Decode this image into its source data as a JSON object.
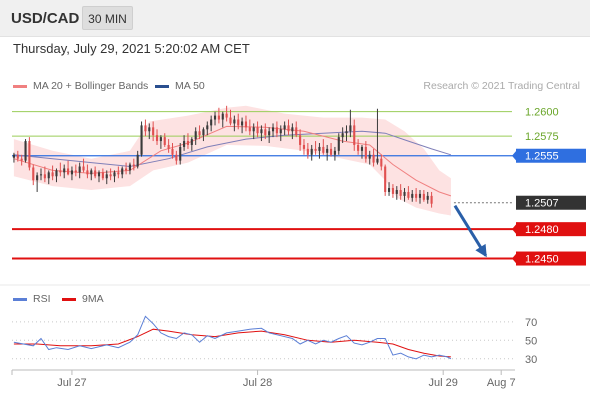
{
  "header": {
    "symbol": "USD/CAD",
    "timeframe": "30 MIN"
  },
  "timestamp": "Thursday, July 29, 2021 5:20:02 AM CET",
  "legend": {
    "ma20_label": "MA 20 + Bollinger Bands",
    "ma50_label": "MA 50",
    "credit": "Research © 2021 Trading Central",
    "rsi_label": "RSI",
    "rsi_ma_label": "9MA"
  },
  "colors": {
    "up_candle": "#3a3a3a",
    "down_candle": "#e05050",
    "bollinger_fill": "#fde2e2",
    "ma20": "#f08080",
    "ma50": "#7f7fb8",
    "resistance": "#9acd58",
    "pivot": "#2f6fe0",
    "support": "#e01010",
    "current": "#333333",
    "rsi": "#5b7fd6",
    "rsi_ma": "#e01010",
    "arrow": "#2a5fa8"
  },
  "chart_data": {
    "type": "candlestick",
    "price_range": [
      1.2425,
      1.2615
    ],
    "levels": [
      {
        "name": "resistance-2",
        "value": 1.26,
        "label": "1.2600",
        "style": "resistance"
      },
      {
        "name": "resistance-1",
        "value": 1.2575,
        "label": "1.2575",
        "style": "resistance"
      },
      {
        "name": "pivot",
        "value": 1.2555,
        "label": "1.2555",
        "style": "pivot"
      },
      {
        "name": "current",
        "value": 1.2507,
        "label": "1.2507",
        "style": "current"
      },
      {
        "name": "support-1",
        "value": 1.248,
        "label": "1.2480",
        "style": "support"
      },
      {
        "name": "support-2",
        "value": 1.245,
        "label": "1.2450",
        "style": "support"
      }
    ],
    "x_ticks": [
      "Jul 27",
      "Jul 28",
      "Jul 29",
      "Aug 7"
    ],
    "x_tick_index": [
      15,
      63,
      111,
      126
    ],
    "slot_count": 128,
    "candles": [
      [
        1.2553,
        1.2558,
        1.2548,
        1.2556
      ],
      [
        1.2556,
        1.256,
        1.2549,
        1.2552
      ],
      [
        1.2552,
        1.2556,
        1.2545,
        1.255
      ],
      [
        1.255,
        1.2572,
        1.2548,
        1.257
      ],
      [
        1.257,
        1.2574,
        1.254,
        1.2543
      ],
      [
        1.2543,
        1.2546,
        1.2525,
        1.253
      ],
      [
        1.253,
        1.2538,
        1.2518,
        1.2535
      ],
      [
        1.2535,
        1.2542,
        1.253,
        1.2536
      ],
      [
        1.2536,
        1.2544,
        1.2528,
        1.2532
      ],
      [
        1.2532,
        1.254,
        1.2526,
        1.2538
      ],
      [
        1.2538,
        1.2545,
        1.253,
        1.2534
      ],
      [
        1.2534,
        1.2542,
        1.2528,
        1.254
      ],
      [
        1.254,
        1.2548,
        1.2534,
        1.2538
      ],
      [
        1.2538,
        1.2546,
        1.2532,
        1.2542
      ],
      [
        1.2542,
        1.255,
        1.2535,
        1.2536
      ],
      [
        1.2536,
        1.2544,
        1.253,
        1.254
      ],
      [
        1.254,
        1.2546,
        1.2534,
        1.2538
      ],
      [
        1.2538,
        1.2548,
        1.2532,
        1.2544
      ],
      [
        1.2544,
        1.2552,
        1.2538,
        1.254
      ],
      [
        1.254,
        1.2546,
        1.2532,
        1.2536
      ],
      [
        1.2536,
        1.2542,
        1.253,
        1.254
      ],
      [
        1.254,
        1.2544,
        1.2532,
        1.2534
      ],
      [
        1.2534,
        1.254,
        1.2528,
        1.2538
      ],
      [
        1.2538,
        1.2542,
        1.253,
        1.2532
      ],
      [
        1.2532,
        1.254,
        1.2526,
        1.2536
      ],
      [
        1.2536,
        1.2542,
        1.253,
        1.2534
      ],
      [
        1.2534,
        1.254,
        1.2528,
        1.2538
      ],
      [
        1.2538,
        1.2544,
        1.2532,
        1.2536
      ],
      [
        1.2536,
        1.2544,
        1.2532,
        1.2542
      ],
      [
        1.2542,
        1.2548,
        1.2536,
        1.254
      ],
      [
        1.254,
        1.2548,
        1.2536,
        1.2546
      ],
      [
        1.2546,
        1.2552,
        1.254,
        1.2544
      ],
      [
        1.2544,
        1.256,
        1.2542,
        1.2556
      ],
      [
        1.2556,
        1.259,
        1.2554,
        1.2586
      ],
      [
        1.2586,
        1.2592,
        1.2575,
        1.258
      ],
      [
        1.258,
        1.2588,
        1.2572,
        1.2584
      ],
      [
        1.2584,
        1.259,
        1.257,
        1.2576
      ],
      [
        1.2576,
        1.2582,
        1.2566,
        1.257
      ],
      [
        1.257,
        1.2576,
        1.2562,
        1.2574
      ],
      [
        1.2574,
        1.2578,
        1.2564,
        1.2566
      ],
      [
        1.2566,
        1.2572,
        1.2558,
        1.2562
      ],
      [
        1.2562,
        1.2568,
        1.2552,
        1.2556
      ],
      [
        1.2556,
        1.256,
        1.2546,
        1.255
      ],
      [
        1.255,
        1.2568,
        1.2546,
        1.2564
      ],
      [
        1.2564,
        1.2576,
        1.256,
        1.257
      ],
      [
        1.257,
        1.2578,
        1.2562,
        1.2566
      ],
      [
        1.2566,
        1.2574,
        1.256,
        1.2572
      ],
      [
        1.2572,
        1.2584,
        1.2566,
        1.258
      ],
      [
        1.258,
        1.2586,
        1.2572,
        1.2576
      ],
      [
        1.2576,
        1.2584,
        1.257,
        1.2582
      ],
      [
        1.2582,
        1.259,
        1.2576,
        1.2586
      ],
      [
        1.2586,
        1.2596,
        1.258,
        1.2592
      ],
      [
        1.2592,
        1.26,
        1.2586,
        1.2596
      ],
      [
        1.2596,
        1.2604,
        1.2588,
        1.2592
      ],
      [
        1.2592,
        1.26,
        1.2584,
        1.2598
      ],
      [
        1.2598,
        1.2606,
        1.259,
        1.2594
      ],
      [
        1.2594,
        1.2602,
        1.2586,
        1.2588
      ],
      [
        1.2588,
        1.2596,
        1.258,
        1.2592
      ],
      [
        1.2592,
        1.2598,
        1.2582,
        1.2586
      ],
      [
        1.2586,
        1.2594,
        1.2578,
        1.259
      ],
      [
        1.259,
        1.2596,
        1.258,
        1.2584
      ],
      [
        1.2584,
        1.2592,
        1.2576,
        1.258
      ],
      [
        1.258,
        1.2588,
        1.2572,
        1.2584
      ],
      [
        1.2584,
        1.259,
        1.2574,
        1.2578
      ],
      [
        1.2578,
        1.2586,
        1.257,
        1.2582
      ],
      [
        1.2582,
        1.2588,
        1.2572,
        1.2576
      ],
      [
        1.2576,
        1.2584,
        1.2568,
        1.258
      ],
      [
        1.258,
        1.2588,
        1.2574,
        1.2584
      ],
      [
        1.2584,
        1.259,
        1.2574,
        1.2578
      ],
      [
        1.2578,
        1.2586,
        1.257,
        1.2582
      ],
      [
        1.2582,
        1.259,
        1.2576,
        1.2586
      ],
      [
        1.2586,
        1.2592,
        1.2576,
        1.258
      ],
      [
        1.258,
        1.2588,
        1.2572,
        1.2584
      ],
      [
        1.2584,
        1.259,
        1.2574,
        1.2576
      ],
      [
        1.2576,
        1.2582,
        1.256,
        1.2566
      ],
      [
        1.2566,
        1.2572,
        1.2556,
        1.2562
      ],
      [
        1.2562,
        1.2568,
        1.2552,
        1.2556
      ],
      [
        1.2556,
        1.2566,
        1.255,
        1.2562
      ],
      [
        1.2562,
        1.257,
        1.2556,
        1.256
      ],
      [
        1.256,
        1.2568,
        1.2552,
        1.2564
      ],
      [
        1.2564,
        1.2572,
        1.2556,
        1.2558
      ],
      [
        1.2558,
        1.2566,
        1.255,
        1.2562
      ],
      [
        1.2562,
        1.2568,
        1.2554,
        1.2556
      ],
      [
        1.2556,
        1.2564,
        1.255,
        1.256
      ],
      [
        1.256,
        1.2578,
        1.2556,
        1.2574
      ],
      [
        1.2574,
        1.2584,
        1.2568,
        1.2578
      ],
      [
        1.2578,
        1.2586,
        1.257,
        1.258
      ],
      [
        1.258,
        1.2602,
        1.2574,
        1.2586
      ],
      [
        1.2586,
        1.2592,
        1.256,
        1.2566
      ],
      [
        1.2566,
        1.2572,
        1.2556,
        1.256
      ],
      [
        1.256,
        1.2566,
        1.2552,
        1.2564
      ],
      [
        1.2564,
        1.257,
        1.2548,
        1.2552
      ],
      [
        1.2552,
        1.256,
        1.2546,
        1.2556
      ],
      [
        1.2556,
        1.2562,
        1.2544,
        1.2548
      ],
      [
        1.2548,
        1.2603,
        1.2546,
        1.2552
      ],
      [
        1.2552,
        1.2556,
        1.254,
        1.2544
      ],
      [
        1.2544,
        1.2546,
        1.2514,
        1.2518
      ],
      [
        1.2518,
        1.2528,
        1.2514,
        1.2522
      ],
      [
        1.2522,
        1.2526,
        1.2512,
        1.2516
      ],
      [
        1.2516,
        1.2524,
        1.251,
        1.252
      ],
      [
        1.252,
        1.2526,
        1.251,
        1.2514
      ],
      [
        1.2514,
        1.2522,
        1.2508,
        1.2518
      ],
      [
        1.2518,
        1.2524,
        1.251,
        1.2512
      ],
      [
        1.2512,
        1.252,
        1.2508,
        1.2516
      ],
      [
        1.2516,
        1.2522,
        1.2508,
        1.2512
      ],
      [
        1.2512,
        1.252,
        1.2506,
        1.2516
      ],
      [
        1.2516,
        1.252,
        1.2508,
        1.251
      ],
      [
        1.251,
        1.2518,
        1.2506,
        1.2514
      ],
      [
        1.2514,
        1.2518,
        1.2502,
        1.2506
      ]
    ],
    "ma20": [
      [
        0,
        1.2552
      ],
      [
        10,
        1.254
      ],
      [
        20,
        1.2537
      ],
      [
        30,
        1.254
      ],
      [
        38,
        1.256
      ],
      [
        45,
        1.2568
      ],
      [
        55,
        1.2585
      ],
      [
        65,
        1.2584
      ],
      [
        75,
        1.258
      ],
      [
        85,
        1.257
      ],
      [
        92,
        1.2566
      ],
      [
        98,
        1.2546
      ],
      [
        104,
        1.253
      ],
      [
        110,
        1.2518
      ],
      [
        113,
        1.2514
      ]
    ],
    "bollinger_upper": [
      [
        0,
        1.2572
      ],
      [
        10,
        1.256
      ],
      [
        20,
        1.2552
      ],
      [
        30,
        1.256
      ],
      [
        35,
        1.259
      ],
      [
        45,
        1.2596
      ],
      [
        55,
        1.2604
      ],
      [
        60,
        1.2606
      ],
      [
        70,
        1.2598
      ],
      [
        80,
        1.2594
      ],
      [
        90,
        1.2594
      ],
      [
        96,
        1.2592
      ],
      [
        101,
        1.258
      ],
      [
        106,
        1.2562
      ],
      [
        110,
        1.254
      ],
      [
        113,
        1.2532
      ]
    ],
    "bollinger_lower": [
      [
        0,
        1.2534
      ],
      [
        10,
        1.2524
      ],
      [
        20,
        1.252
      ],
      [
        30,
        1.2524
      ],
      [
        36,
        1.254
      ],
      [
        45,
        1.2548
      ],
      [
        55,
        1.2566
      ],
      [
        65,
        1.2565
      ],
      [
        75,
        1.256
      ],
      [
        85,
        1.2552
      ],
      [
        92,
        1.2546
      ],
      [
        96,
        1.253
      ],
      [
        99,
        1.2512
      ],
      [
        104,
        1.2502
      ],
      [
        110,
        1.2496
      ],
      [
        113,
        1.2494
      ]
    ],
    "ma50": [
      [
        0,
        1.2556
      ],
      [
        10,
        1.2552
      ],
      [
        20,
        1.2548
      ],
      [
        30,
        1.2544
      ],
      [
        40,
        1.2552
      ],
      [
        50,
        1.2564
      ],
      [
        60,
        1.2572
      ],
      [
        70,
        1.2576
      ],
      [
        80,
        1.2578
      ],
      [
        90,
        1.258
      ],
      [
        96,
        1.2578
      ],
      [
        102,
        1.257
      ],
      [
        108,
        1.2562
      ],
      [
        113,
        1.2556
      ]
    ],
    "projection": {
      "from": [
        113,
        1.2504
      ],
      "to": [
        122,
        1.2453
      ]
    },
    "rsi": {
      "yticks": [
        70,
        50,
        30
      ],
      "range": [
        20,
        85
      ],
      "rsi_values": [
        [
          0,
          48
        ],
        [
          5,
          44
        ],
        [
          7,
          52
        ],
        [
          9,
          40
        ],
        [
          11,
          42
        ],
        [
          14,
          40
        ],
        [
          17,
          44
        ],
        [
          20,
          41
        ],
        [
          24,
          45
        ],
        [
          27,
          42
        ],
        [
          30,
          48
        ],
        [
          32,
          56
        ],
        [
          34,
          76
        ],
        [
          36,
          68
        ],
        [
          38,
          58
        ],
        [
          40,
          54
        ],
        [
          42,
          52
        ],
        [
          44,
          58
        ],
        [
          46,
          56
        ],
        [
          48,
          48
        ],
        [
          50,
          55
        ],
        [
          52,
          52
        ],
        [
          55,
          58
        ],
        [
          58,
          60
        ],
        [
          61,
          62
        ],
        [
          64,
          63
        ],
        [
          66,
          58
        ],
        [
          69,
          55
        ],
        [
          72,
          52
        ],
        [
          74,
          46
        ],
        [
          76,
          50
        ],
        [
          78,
          46
        ],
        [
          80,
          50
        ],
        [
          82,
          48
        ],
        [
          84,
          52
        ],
        [
          86,
          55
        ],
        [
          88,
          47
        ],
        [
          90,
          45
        ],
        [
          92,
          48
        ],
        [
          94,
          52
        ],
        [
          96,
          52
        ],
        [
          98,
          34
        ],
        [
          100,
          36
        ],
        [
          102,
          32
        ],
        [
          104,
          30
        ],
        [
          106,
          34
        ],
        [
          108,
          32
        ],
        [
          110,
          34
        ],
        [
          112,
          32
        ],
        [
          113,
          30
        ]
      ],
      "ma9_values": [
        [
          0,
          46
        ],
        [
          6,
          46
        ],
        [
          12,
          44
        ],
        [
          20,
          44
        ],
        [
          27,
          46
        ],
        [
          32,
          54
        ],
        [
          36,
          62
        ],
        [
          40,
          60
        ],
        [
          46,
          56
        ],
        [
          52,
          54
        ],
        [
          58,
          58
        ],
        [
          64,
          60
        ],
        [
          70,
          56
        ],
        [
          76,
          50
        ],
        [
          82,
          48
        ],
        [
          88,
          50
        ],
        [
          94,
          48
        ],
        [
          98,
          46
        ],
        [
          102,
          40
        ],
        [
          106,
          36
        ],
        [
          110,
          33
        ],
        [
          113,
          32
        ]
      ]
    }
  }
}
